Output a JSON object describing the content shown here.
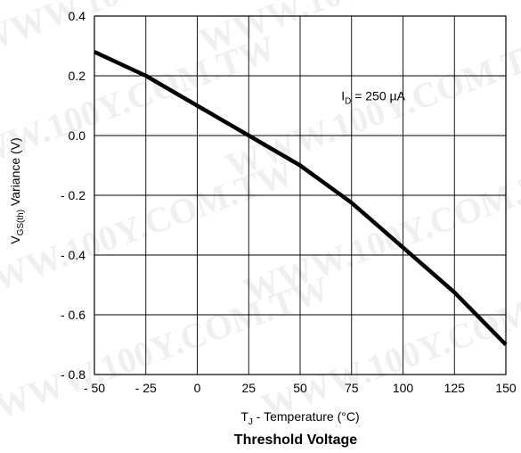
{
  "chart_data": {
    "type": "line",
    "title": "Threshold Voltage",
    "xlabel": {
      "main": "T",
      "sub": "J",
      "rest": " - Temperature (°C)"
    },
    "ylabel": {
      "main": "V",
      "sub": "GS(th)",
      "rest": "  Variance (V)"
    },
    "xlim": [
      -50,
      150
    ],
    "ylim": [
      -0.8,
      0.4
    ],
    "x_ticks": [
      -50,
      -25,
      0,
      25,
      50,
      75,
      100,
      125,
      150
    ],
    "x_tick_labels": [
      "- 50",
      "- 25",
      "0",
      "25",
      "50",
      "75",
      "100",
      "125",
      "150"
    ],
    "y_ticks": [
      0.4,
      0.2,
      0.0,
      -0.2,
      -0.4,
      -0.6,
      -0.8
    ],
    "y_tick_labels": [
      "0.4",
      "0.2",
      "0.0",
      "- 0.2",
      "- 0.4",
      "- 0.6",
      "- 0.8"
    ],
    "grid": true,
    "annotation": {
      "main": "I",
      "sub": "D",
      "rest": " = 250 µA",
      "x": 70,
      "y": 0.1
    },
    "series": [
      {
        "color": "#000000",
        "x": [
          -50,
          -25,
          0,
          25,
          50,
          75,
          100,
          125,
          150
        ],
        "y": [
          0.28,
          0.2,
          0.1,
          0.0,
          -0.1,
          -0.225,
          -0.375,
          -0.525,
          -0.7
        ]
      }
    ]
  },
  "watermark": "WWW.100Y.COM.TW"
}
